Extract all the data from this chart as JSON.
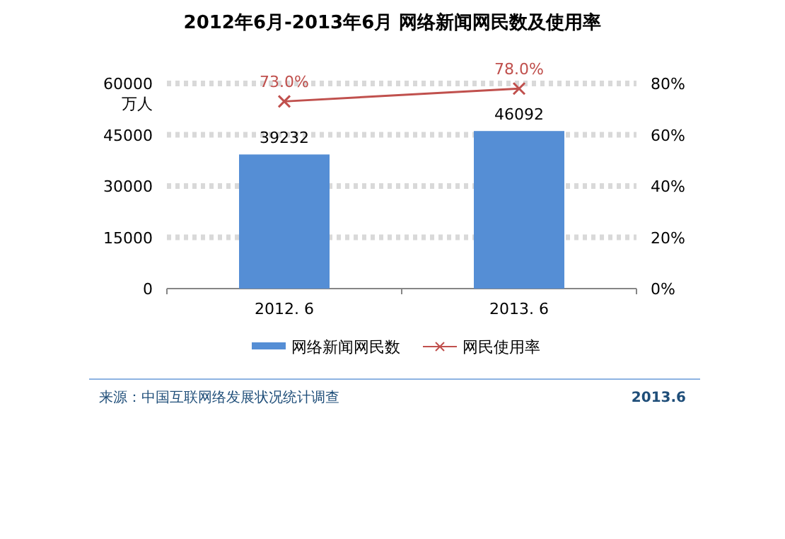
{
  "chart_data": {
    "type": "bar",
    "title": "2012年6月-2013年6月 网络新闻网民数及使用率",
    "ylabel": "万人",
    "categories": [
      "2012. 6",
      "2013. 6"
    ],
    "series": [
      {
        "name": "网络新闻网民数",
        "color": "#558ed5",
        "values": [
          39232,
          46092
        ],
        "value_labels": [
          "39232",
          "46092"
        ]
      },
      {
        "name": "网民使用率",
        "type": "line",
        "axis": "y2",
        "color": "#c0504d",
        "marker": "cross",
        "values": [
          73.0,
          78.0
        ],
        "value_labels": [
          "73.0%",
          "78.0%"
        ]
      }
    ],
    "ylim": [
      0,
      60000
    ],
    "yticks": [
      0,
      15000,
      30000,
      45000,
      60000
    ],
    "y2lim": [
      0,
      80
    ],
    "y2ticks": [
      {
        "value": 0,
        "label": "0%"
      },
      {
        "value": 20,
        "label": "20%"
      },
      {
        "value": 40,
        "label": "40%"
      },
      {
        "value": 60,
        "label": "60%"
      },
      {
        "value": 80,
        "label": "80%"
      }
    ],
    "grid": "y",
    "legend": "bottom",
    "annotations": [
      "来源：中国互联网络发展状况统计调查",
      "2013.6"
    ]
  }
}
